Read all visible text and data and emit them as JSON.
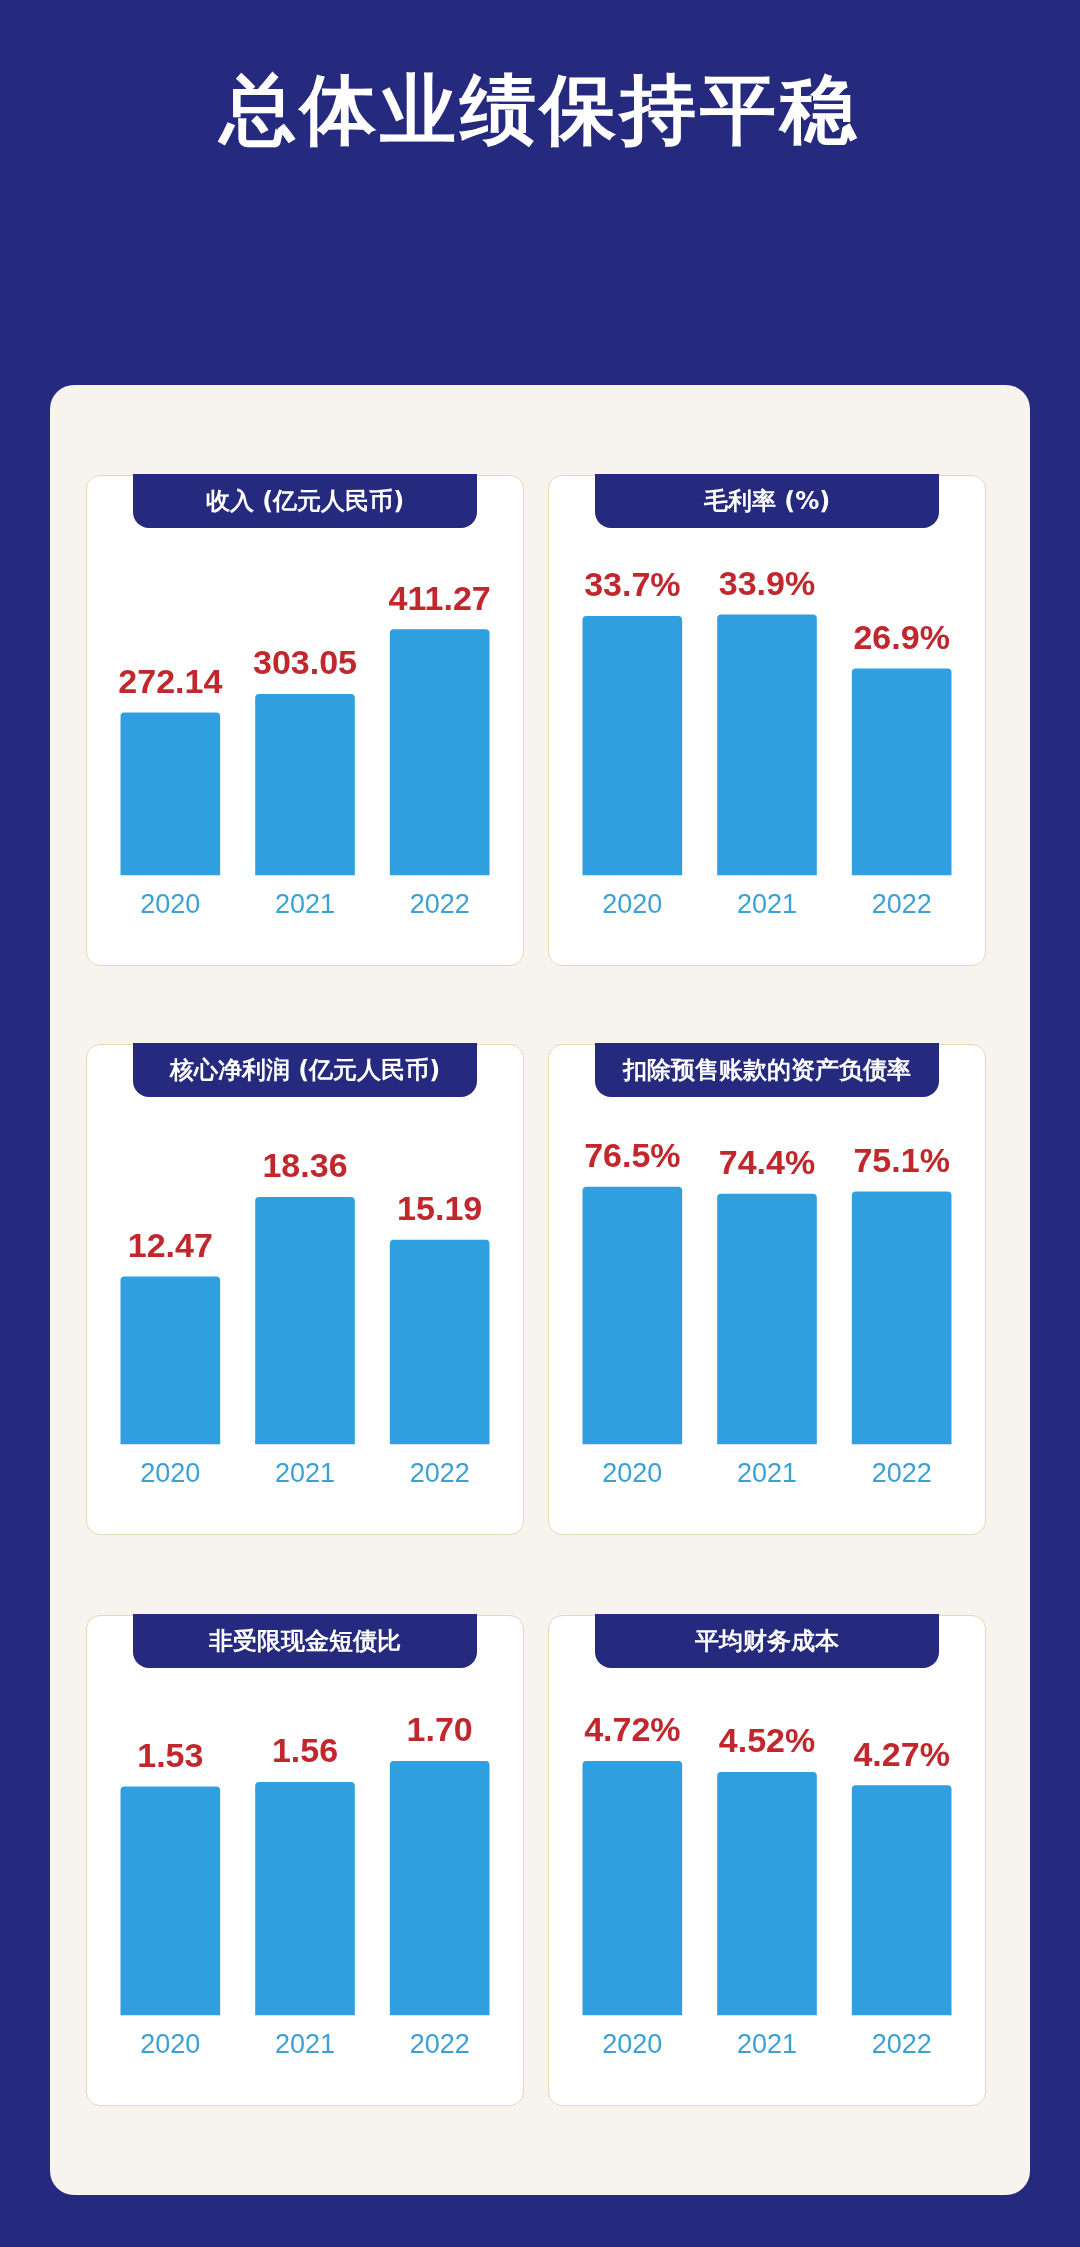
{
  "chart_data": [
    {
      "type": "other",
      "title": "总体业绩保持平稳"
    },
    {
      "type": "bar",
      "title": "收入 (亿元人民币)",
      "categories": [
        "2020",
        "2021",
        "2022"
      ],
      "values": [
        272.14,
        303.05,
        411.27
      ],
      "value_labels": [
        "272.14",
        "303.05",
        "411.27"
      ],
      "color": "#2f9fdf"
    },
    {
      "type": "bar",
      "title": "毛利率 (%)",
      "categories": [
        "2020",
        "2021",
        "2022"
      ],
      "values": [
        33.7,
        33.9,
        26.9
      ],
      "value_labels": [
        "33.7%",
        "33.9%",
        "26.9%"
      ],
      "color": "#2f9fdf"
    },
    {
      "type": "bar",
      "title": "核心净利润 (亿元人民币)",
      "categories": [
        "2020",
        "2021",
        "2022"
      ],
      "values": [
        12.47,
        18.36,
        15.19
      ],
      "value_labels": [
        "12.47",
        "18.36",
        "15.19"
      ],
      "color": "#2f9fdf"
    },
    {
      "type": "bar",
      "title": "扣除预售账款的资产负债率",
      "categories": [
        "2020",
        "2021",
        "2022"
      ],
      "values": [
        76.5,
        74.4,
        75.1
      ],
      "value_labels": [
        "76.5%",
        "74.4%",
        "75.1%"
      ],
      "color": "#2f9fdf"
    },
    {
      "type": "bar",
      "title": "非受限现金短债比",
      "categories": [
        "2020",
        "2021",
        "2022"
      ],
      "values": [
        1.53,
        1.56,
        1.7
      ],
      "value_labels": [
        "1.53",
        "1.56",
        "1.70"
      ],
      "color": "#2f9fdf"
    },
    {
      "type": "bar",
      "title": "平均财务成本",
      "categories": [
        "2020",
        "2021",
        "2022"
      ],
      "values": [
        4.72,
        4.52,
        4.27
      ],
      "value_labels": [
        "4.72%",
        "4.52%",
        "4.27%"
      ],
      "color": "#2f9fdf"
    }
  ]
}
